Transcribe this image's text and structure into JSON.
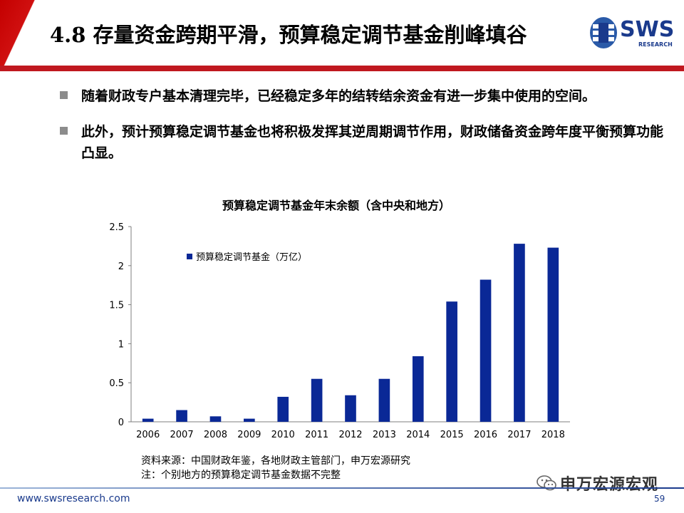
{
  "header": {
    "title": "4.8 存量资金跨期平滑，预算稳定调节基金削峰填谷",
    "logo_text": "SWS",
    "logo_sub": "RESEARCH"
  },
  "bullets": [
    {
      "text": "随着财政专户基本清理完毕，已经稳定多年的结转结余资金有进一步集中使用的空间。"
    },
    {
      "text": "此外，预计预算稳定调节基金也将积极发挥其逆周期调节作用，财政储备资金跨年度平衡预算功能凸显。"
    }
  ],
  "chart_data": {
    "type": "bar",
    "title": "预算稳定调节基金年末余额（含中央和地方）",
    "categories": [
      "2006",
      "2007",
      "2008",
      "2009",
      "2010",
      "2011",
      "2012",
      "2013",
      "2014",
      "2015",
      "2016",
      "2017",
      "2018"
    ],
    "series": [
      {
        "name": "预算稳定调节基金（万亿）",
        "values": [
          0.04,
          0.15,
          0.07,
          0.04,
          0.32,
          0.55,
          0.34,
          0.55,
          0.84,
          1.54,
          1.82,
          2.28,
          2.23
        ]
      }
    ],
    "yticks": [
      "0",
      "0.5",
      "1",
      "1.5",
      "2",
      "2.5"
    ],
    "ylim": [
      0,
      2.5
    ],
    "xlabel": "",
    "ylabel": "",
    "grid": false,
    "legend": "top-left",
    "bar_color": "#0a2896"
  },
  "source": {
    "line1": "资料来源：中国财政年鉴，各地财政主管部门，申万宏源研究",
    "line2": "注：个别地方的预算稳定调节基金数据不完整"
  },
  "watermark": {
    "text": "申万宏源宏观"
  },
  "footer": {
    "url": "www.swsresearch.com",
    "page": "59"
  },
  "colors": {
    "accent_red": "#c0181f",
    "brand_blue": "#1a3a8c"
  }
}
